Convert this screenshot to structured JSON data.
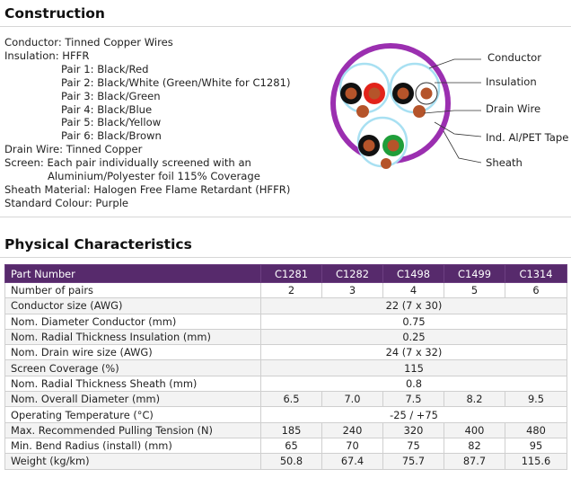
{
  "construction": {
    "title": "Construction",
    "lines": [
      {
        "text": "Conductor: Tinned Copper Wires",
        "indent": "none"
      },
      {
        "text": "Insulation: HFFR",
        "indent": "none"
      },
      {
        "text": "Pair 1: Black/Red",
        "indent": "pair"
      },
      {
        "text": "Pair 2: Black/White (Green/White for C1281)",
        "indent": "pair"
      },
      {
        "text": "Pair 3: Black/Green",
        "indent": "pair"
      },
      {
        "text": "Pair 4: Black/Blue",
        "indent": "pair"
      },
      {
        "text": "Pair 5: Black/Yellow",
        "indent": "pair"
      },
      {
        "text": "Pair 6: Black/Brown",
        "indent": "pair"
      },
      {
        "text": "Drain Wire: Tinned Copper",
        "indent": "none"
      },
      {
        "text": "Screen: Each pair individually screened with an",
        "indent": "none"
      },
      {
        "text": "Aluminium/Polyester foil 115% Coverage",
        "indent": "cont"
      },
      {
        "text": "Sheath Material: Halogen Free Flame Retardant (HFFR)",
        "indent": "none"
      },
      {
        "text": "Standard Colour: Purple",
        "indent": "none"
      }
    ],
    "diagram_labels": {
      "conductor": "Conductor",
      "insulation": "Insulation",
      "drain_wire": "Drain Wire",
      "tape": "Ind. Al/PET Tape",
      "sheath": "Sheath"
    },
    "colors": {
      "sheath": "#9b2fb0",
      "tape": "#a8e0f2",
      "copper": "#b5542a",
      "red": "#e2231a",
      "green": "#1f9e3a",
      "black": "#111111",
      "white": "#ffffff"
    }
  },
  "physical": {
    "title": "Physical Characteristics",
    "header": {
      "label": "Part Number",
      "parts": [
        "C1281",
        "C1282",
        "C1498",
        "C1499",
        "C1314"
      ]
    },
    "header_color": "#572a6c",
    "rows": [
      {
        "label": "Number of pairs",
        "values": [
          "2",
          "3",
          "4",
          "5",
          "6"
        ]
      },
      {
        "label": "Conductor size (AWG)",
        "values": [
          "22 (7 x 30)"
        ]
      },
      {
        "label": "Nom. Diameter Conductor (mm)",
        "values": [
          "0.75"
        ]
      },
      {
        "label": "Nom. Radial Thickness Insulation (mm)",
        "values": [
          "0.25"
        ]
      },
      {
        "label": "Nom. Drain wire size (AWG)",
        "values": [
          "24 (7 x 32)"
        ]
      },
      {
        "label": "Screen Coverage (%)",
        "values": [
          "115"
        ]
      },
      {
        "label": "Nom. Radial Thickness Sheath (mm)",
        "values": [
          "0.8"
        ]
      },
      {
        "label": "Nom. Overall Diameter (mm)",
        "values": [
          "6.5",
          "7.0",
          "7.5",
          "8.2",
          "9.5"
        ]
      },
      {
        "label": "Operating Temperature (°C)",
        "values": [
          "-25 / +75"
        ]
      },
      {
        "label": "Max. Recommended Pulling Tension (N)",
        "values": [
          "185",
          "240",
          "320",
          "400",
          "480"
        ]
      },
      {
        "label": "Min. Bend Radius (install) (mm)",
        "values": [
          "65",
          "70",
          "75",
          "82",
          "95"
        ]
      },
      {
        "label": "Weight (kg/km)",
        "values": [
          "50.8",
          "67.4",
          "75.7",
          "87.7",
          "115.6"
        ]
      }
    ]
  }
}
